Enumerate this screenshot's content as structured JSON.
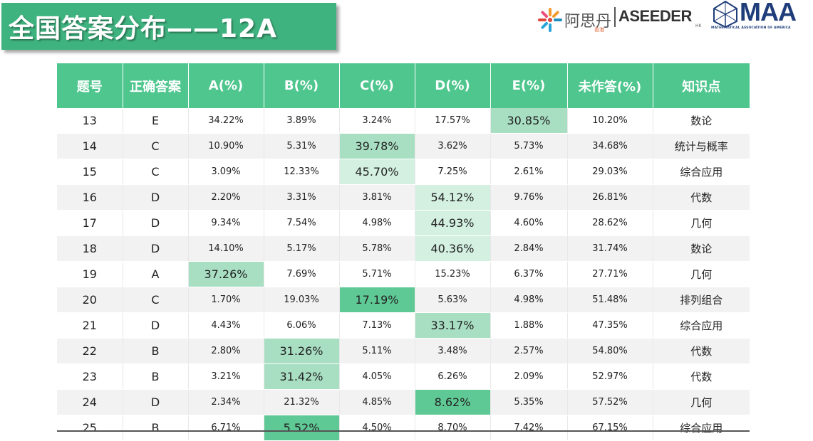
{
  "title": "全国答案分布——12A",
  "logos": {
    "asz_name": "阿思丹",
    "asz_sub": "香港",
    "aseeder": "ASEEDER",
    "aseeder_sub": "HK",
    "maa": "MAA",
    "maa_sub": "MATHEMATICAL ASSOCIATION OF AMERICA"
  },
  "colors": {
    "accent": "#4ec68e",
    "banner": "#3fb37f",
    "highlight_light": "#d3f0e1",
    "highlight_mid": "#a8dfc3",
    "highlight_dark": "#5fc995"
  },
  "table": {
    "headers": [
      "题号",
      "正确答案",
      "A(%)",
      "B(%)",
      "C(%)",
      "D(%)",
      "E(%)",
      "未作答(%)",
      "知识点"
    ],
    "rows": [
      {
        "cells": [
          "13",
          "E",
          "34.22%",
          "3.89%",
          "3.24%",
          "17.57%",
          "30.85%",
          "10.20%",
          "数论"
        ],
        "highlight_col": 6,
        "level": "mid"
      },
      {
        "cells": [
          "14",
          "C",
          "10.90%",
          "5.31%",
          "39.78%",
          "3.62%",
          "5.73%",
          "34.68%",
          "统计与概率"
        ],
        "highlight_col": 4,
        "level": "mid"
      },
      {
        "cells": [
          "15",
          "C",
          "3.09%",
          "12.33%",
          "45.70%",
          "7.25%",
          "2.61%",
          "29.03%",
          "综合应用"
        ],
        "highlight_col": 4,
        "level": "light"
      },
      {
        "cells": [
          "16",
          "D",
          "2.20%",
          "3.31%",
          "3.81%",
          "54.12%",
          "9.76%",
          "26.81%",
          "代数"
        ],
        "highlight_col": 5,
        "level": "light"
      },
      {
        "cells": [
          "17",
          "D",
          "9.34%",
          "7.54%",
          "4.98%",
          "44.93%",
          "4.60%",
          "28.62%",
          "几何"
        ],
        "highlight_col": 5,
        "level": "light"
      },
      {
        "cells": [
          "18",
          "D",
          "14.10%",
          "5.17%",
          "5.78%",
          "40.36%",
          "2.84%",
          "31.74%",
          "数论"
        ],
        "highlight_col": 5,
        "level": "light"
      },
      {
        "cells": [
          "19",
          "A",
          "37.26%",
          "7.69%",
          "5.71%",
          "15.23%",
          "6.37%",
          "27.71%",
          "几何"
        ],
        "highlight_col": 2,
        "level": "mid"
      },
      {
        "cells": [
          "20",
          "C",
          "1.70%",
          "19.03%",
          "17.19%",
          "5.63%",
          "4.98%",
          "51.48%",
          "排列组合"
        ],
        "highlight_col": 4,
        "level": "dark"
      },
      {
        "cells": [
          "21",
          "D",
          "4.43%",
          "6.06%",
          "7.13%",
          "33.17%",
          "1.88%",
          "47.35%",
          "综合应用"
        ],
        "highlight_col": 5,
        "level": "mid"
      },
      {
        "cells": [
          "22",
          "B",
          "2.80%",
          "31.26%",
          "5.11%",
          "3.48%",
          "2.57%",
          "54.80%",
          "代数"
        ],
        "highlight_col": 3,
        "level": "mid"
      },
      {
        "cells": [
          "23",
          "B",
          "3.21%",
          "31.42%",
          "4.05%",
          "6.26%",
          "2.09%",
          "52.97%",
          "代数"
        ],
        "highlight_col": 3,
        "level": "mid"
      },
      {
        "cells": [
          "24",
          "D",
          "2.34%",
          "21.32%",
          "4.85%",
          "8.62%",
          "5.35%",
          "57.52%",
          "几何"
        ],
        "highlight_col": 5,
        "level": "dark"
      },
      {
        "cells": [
          "25",
          "B",
          "6.71%",
          "5.52%",
          "4.50%",
          "8.70%",
          "7.42%",
          "67.15%",
          "综合应用"
        ],
        "highlight_col": 3,
        "level": "dark"
      }
    ]
  }
}
